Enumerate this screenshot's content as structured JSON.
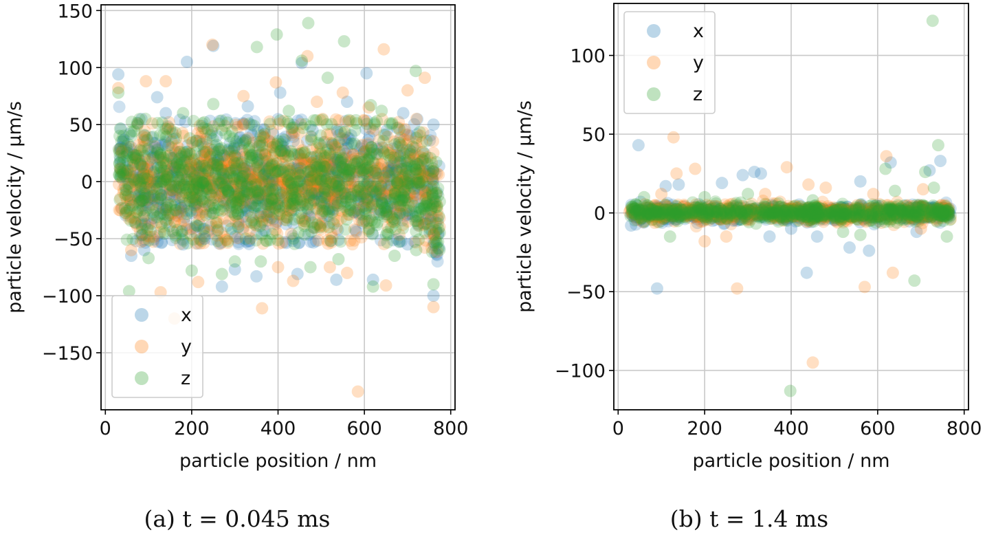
{
  "chart_data": [
    {
      "type": "scatter",
      "caption": "(a) t = 0.045 ms",
      "xlabel": "particle position / nm",
      "ylabel": "particle velocity / μm/s",
      "xlim": [
        -10,
        810
      ],
      "ylim": [
        -200,
        155
      ],
      "xticks": [
        0,
        200,
        400,
        600,
        800
      ],
      "yticks": [
        -150,
        -100,
        -50,
        0,
        50,
        100,
        150
      ],
      "grid": true,
      "legend": "lower-left",
      "bulk": {
        "x_range": [
          30,
          775
        ],
        "y_spread": 26,
        "y_extreme": 55,
        "edge_tails": true
      },
      "series": [
        {
          "name": "x",
          "color": "#1f77b4",
          "points": [
            [
              30,
              94
            ],
            [
              189,
              105
            ],
            [
              455,
              104
            ],
            [
              605,
              95
            ],
            [
              250,
              119
            ],
            [
              480,
              45
            ],
            [
              350,
              -83
            ],
            [
              300,
              -77
            ],
            [
              270,
              -92
            ],
            [
              535,
              -86
            ],
            [
              620,
              -86
            ],
            [
              445,
              -81
            ],
            [
              60,
              -65
            ],
            [
              90,
              -60
            ],
            [
              180,
              -55
            ],
            [
              230,
              -50
            ],
            [
              700,
              -55
            ],
            [
              760,
              -100
            ],
            [
              405,
              78
            ],
            [
              330,
              66
            ],
            [
              560,
              70
            ],
            [
              120,
              74
            ],
            [
              760,
              50
            ],
            [
              140,
              60
            ],
            [
              690,
              60
            ]
          ]
        },
        {
          "name": "y",
          "color": "#ff7f0e",
          "points": [
            [
              248,
              120
            ],
            [
              468,
              110
            ],
            [
              645,
              116
            ],
            [
              760,
              -110
            ],
            [
              363,
              -111
            ],
            [
              585,
              -184
            ],
            [
              128,
              -97
            ],
            [
              160,
              -120
            ],
            [
              395,
              87
            ],
            [
              550,
              78
            ],
            [
              94,
              88
            ],
            [
              140,
              88
            ],
            [
              215,
              -88
            ],
            [
              435,
              -87
            ],
            [
              560,
              -80
            ],
            [
              700,
              80
            ],
            [
              740,
              91
            ],
            [
              320,
              75
            ],
            [
              490,
              70
            ],
            [
              650,
              -91
            ],
            [
              520,
              -75
            ],
            [
              60,
              -60
            ],
            [
              30,
              82
            ],
            [
              400,
              -75
            ],
            [
              610,
              65
            ]
          ]
        },
        {
          "name": "z",
          "color": "#2ca02c",
          "points": [
            [
              397,
              129
            ],
            [
              470,
              139
            ],
            [
              553,
              123
            ],
            [
              351,
              118
            ],
            [
              719,
              97
            ],
            [
              515,
              91
            ],
            [
              615,
              67
            ],
            [
              455,
              106
            ],
            [
              620,
              -92
            ],
            [
              55,
              -96
            ],
            [
              200,
              -78
            ],
            [
              270,
              -81
            ],
            [
              475,
              -75
            ],
            [
              540,
              -68
            ],
            [
              760,
              -90
            ],
            [
              100,
              -67
            ],
            [
              360,
              -70
            ],
            [
              300,
              -70
            ],
            [
              720,
              -60
            ],
            [
              670,
              -65
            ],
            [
              30,
              78
            ],
            [
              640,
              62
            ],
            [
              180,
              60
            ],
            [
              250,
              68
            ],
            [
              425,
              62
            ]
          ]
        }
      ]
    },
    {
      "type": "scatter",
      "caption": "(b) t = 1.4 ms",
      "xlabel": "particle position / nm",
      "ylabel": "particle velocity / μm/s",
      "xlim": [
        -10,
        810
      ],
      "ylim": [
        -125,
        133
      ],
      "xticks": [
        0,
        200,
        400,
        600,
        800
      ],
      "yticks": [
        -100,
        -50,
        0,
        50,
        100
      ],
      "grid": true,
      "legend": "upper-left",
      "bulk": {
        "x_range": [
          25,
          770
        ],
        "y_spread": 2.5,
        "y_extreme": 9,
        "edge_tails": false
      },
      "series": [
        {
          "name": "x",
          "color": "#1f77b4",
          "points": [
            [
              47,
              43
            ],
            [
              90,
              -48
            ],
            [
              436,
              -38
            ],
            [
              580,
              -24
            ],
            [
              745,
              33
            ],
            [
              720,
              27
            ],
            [
              288,
              24
            ],
            [
              315,
              26
            ],
            [
              330,
              25
            ],
            [
              240,
              19
            ],
            [
              140,
              18
            ],
            [
              110,
              17
            ],
            [
              535,
              -22
            ],
            [
              460,
              -15
            ],
            [
              350,
              -15
            ],
            [
              630,
              32
            ],
            [
              560,
              20
            ],
            [
              30,
              -8
            ],
            [
              690,
              -12
            ],
            [
              400,
              -10
            ]
          ]
        },
        {
          "name": "y",
          "color": "#ff7f0e",
          "points": [
            [
              128,
              48
            ],
            [
              178,
              28
            ],
            [
              390,
              29
            ],
            [
              620,
              36
            ],
            [
              450,
              -95
            ],
            [
              635,
              -38
            ],
            [
              570,
              -47
            ],
            [
              275,
              -48
            ],
            [
              200,
              -18
            ],
            [
              135,
              25
            ],
            [
              440,
              18
            ],
            [
              480,
              16
            ],
            [
              250,
              -15
            ],
            [
              705,
              15
            ],
            [
              340,
              12
            ],
            [
              590,
              12
            ],
            [
              700,
              -10
            ],
            [
              100,
              12
            ]
          ]
        },
        {
          "name": "z",
          "color": "#2ca02c",
          "points": [
            [
              727,
              122
            ],
            [
              740,
              43
            ],
            [
              398,
              -113
            ],
            [
              685,
              -43
            ],
            [
              618,
              28
            ],
            [
              710,
              26
            ],
            [
              730,
              16
            ],
            [
              760,
              -15
            ],
            [
              520,
              -12
            ],
            [
              60,
              10
            ],
            [
              300,
              12
            ],
            [
              560,
              -14
            ],
            [
              640,
              14
            ],
            [
              200,
              10
            ],
            [
              120,
              -15
            ],
            [
              450,
              8
            ]
          ]
        }
      ]
    }
  ]
}
